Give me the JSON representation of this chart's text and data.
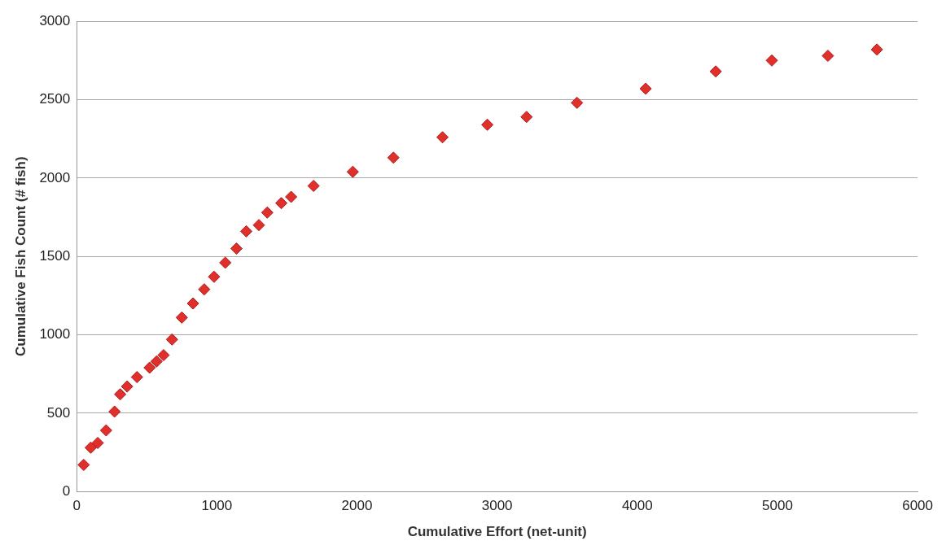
{
  "chart_data": {
    "type": "scatter",
    "xlabel": "Cumulative Effort (net-unit)",
    "ylabel": "Cumulative Fish Count (# fish)",
    "x": [
      50,
      100,
      150,
      210,
      270,
      310,
      360,
      430,
      520,
      570,
      620,
      680,
      750,
      830,
      910,
      980,
      1060,
      1140,
      1210,
      1300,
      1360,
      1460,
      1530,
      1690,
      1970,
      2260,
      2610,
      2930,
      3210,
      3570,
      4060,
      4560,
      4960,
      5360,
      5710
    ],
    "values": [
      170,
      280,
      310,
      390,
      510,
      620,
      670,
      730,
      790,
      830,
      870,
      970,
      1110,
      1200,
      1290,
      1370,
      1460,
      1550,
      1660,
      1700,
      1780,
      1840,
      1880,
      1950,
      2040,
      2130,
      2260,
      2340,
      2390,
      2480,
      2570,
      2680,
      2750,
      2780,
      2820
    ],
    "color": "#e0302c",
    "marker": "diamond",
    "grid": "y",
    "xlim": [
      0,
      6000
    ],
    "xticks": [
      0,
      1000,
      2000,
      3000,
      4000,
      5000,
      6000
    ],
    "ylim": [
      0,
      3000
    ],
    "yticks": [
      0,
      500,
      1000,
      1500,
      2000,
      2500,
      3000
    ]
  }
}
